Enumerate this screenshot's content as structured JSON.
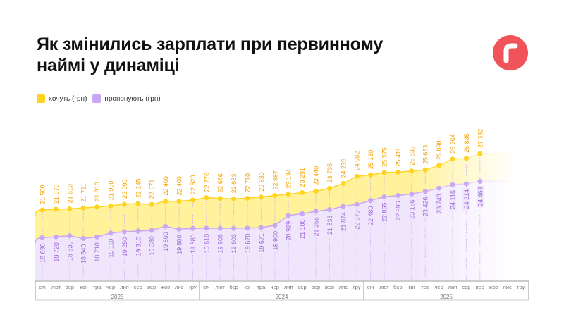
{
  "header": {
    "title": "Як змінились зарплати при первинному наймі у динаміці",
    "logo_text": "r"
  },
  "legend": [
    {
      "label": "хочуть (грн)",
      "color": "#FFD31F"
    },
    {
      "label": "пропонують (грн)",
      "color": "#C9A7F2"
    }
  ],
  "colors": {
    "want": "#FFD31F",
    "want_fill": "#FFF29A",
    "want_label": "#F3A000",
    "offer": "#C9A7F2",
    "offer_fill": "#F0E6FC",
    "offer_label": "#9A66D6",
    "logo": "#F0535A"
  },
  "chart_data": {
    "type": "area",
    "months": [
      "січ",
      "лют",
      "бер",
      "кві",
      "тра",
      "чер",
      "лип",
      "сер",
      "вер",
      "жов",
      "лис",
      "гру"
    ],
    "years": [
      "2023",
      "2024",
      "2025"
    ],
    "series": [
      {
        "name": "хочуть (грн)",
        "values": [
          21500,
          21570,
          21610,
          21711,
          21810,
          21930,
          22090,
          22145,
          22071,
          22400,
          22400,
          22520,
          22776,
          22686,
          22653,
          22710,
          22830,
          22997,
          23134,
          23291,
          23440,
          23735,
          24235,
          24982,
          25130,
          25375,
          25411,
          25533,
          25653,
          26098,
          26764,
          26835,
          27332
        ]
      },
      {
        "name": "пропонують (грн)",
        "values": [
          18630,
          18720,
          18830,
          18540,
          18710,
          19110,
          19250,
          19310,
          19380,
          19800,
          19500,
          19580,
          19610,
          19606,
          19603,
          19620,
          19671,
          19900,
          20929,
          21106,
          21355,
          21533,
          21874,
          22070,
          22480,
          22855,
          22996,
          23156,
          23426,
          23748,
          24116,
          24214,
          24463
        ]
      }
    ]
  }
}
